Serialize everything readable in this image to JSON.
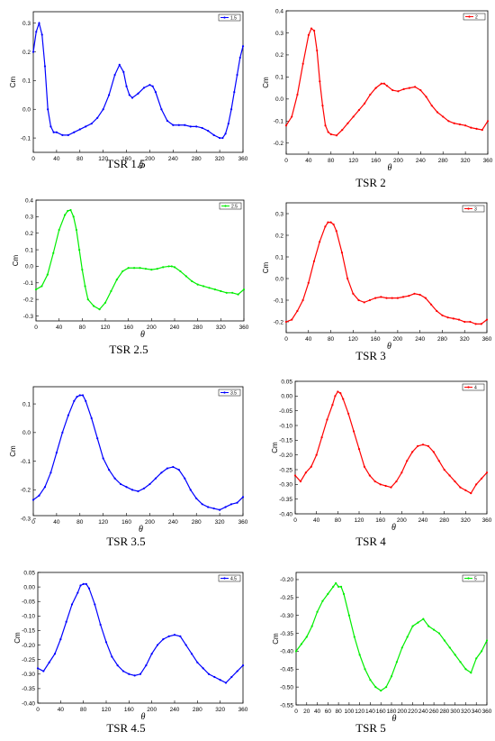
{
  "figure": {
    "charts": [
      {
        "caption": "TSR 1.5",
        "legend": "1.5",
        "color": "#0000ff"
      },
      {
        "caption": "TSR 2",
        "legend": "2",
        "color": "#ff0000"
      },
      {
        "caption": "TSR 2.5",
        "legend": "2.5",
        "color": "#00ee00"
      },
      {
        "caption": "TSR 3",
        "legend": "3",
        "color": "#ff0000"
      },
      {
        "caption": "TSR 3.5",
        "legend": "3.5",
        "color": "#0000ff"
      },
      {
        "caption": "TSR 4",
        "legend": "4",
        "color": "#ff0000"
      },
      {
        "caption": "TSR 4.5",
        "legend": "4.5",
        "color": "#0000ff"
      },
      {
        "caption": "TSR 5",
        "legend": "5",
        "color": "#00ee00"
      }
    ]
  },
  "chart_data": [
    {
      "type": "scatter",
      "title": "TSR 1.5",
      "xlabel": "θ",
      "ylabel": "Cm",
      "xlim": [
        0,
        360
      ],
      "ylim": [
        -0.15,
        0.34
      ],
      "xticks": [
        "0",
        "40",
        "80",
        "120",
        "160",
        "200",
        "240",
        "280",
        "320",
        "360"
      ],
      "yticks": [
        "-0.1",
        "0.0",
        "0.1",
        "0.2",
        "0.3"
      ],
      "ytick_values": [
        -0.1,
        0.0,
        0.1,
        0.2,
        0.3
      ],
      "legend_position": "top-right",
      "series": [
        {
          "name": "1.5",
          "color": "#0000ff",
          "x": [
            0,
            5,
            10,
            15,
            20,
            25,
            30,
            35,
            40,
            50,
            60,
            70,
            80,
            90,
            100,
            110,
            120,
            130,
            140,
            148,
            155,
            160,
            165,
            170,
            180,
            190,
            200,
            205,
            210,
            220,
            230,
            240,
            250,
            260,
            270,
            280,
            290,
            300,
            310,
            320,
            325,
            330,
            335,
            340,
            345,
            350,
            355,
            360
          ],
          "y": [
            0.2,
            0.27,
            0.3,
            0.26,
            0.15,
            0.0,
            -0.06,
            -0.08,
            -0.08,
            -0.09,
            -0.09,
            -0.08,
            -0.07,
            -0.06,
            -0.05,
            -0.03,
            0.0,
            0.05,
            0.12,
            0.155,
            0.13,
            0.08,
            0.05,
            0.04,
            0.055,
            0.075,
            0.085,
            0.08,
            0.06,
            0.0,
            -0.04,
            -0.055,
            -0.055,
            -0.055,
            -0.06,
            -0.06,
            -0.065,
            -0.075,
            -0.09,
            -0.1,
            -0.1,
            -0.085,
            -0.05,
            0.0,
            0.06,
            0.12,
            0.18,
            0.22
          ]
        }
      ]
    },
    {
      "type": "scatter",
      "title": "TSR 2",
      "xlabel": "θ",
      "ylabel": "Cm",
      "xlim": [
        0,
        360
      ],
      "ylim": [
        -0.25,
        0.4
      ],
      "xticks": [
        "0",
        "40",
        "80",
        "120",
        "160",
        "200",
        "240",
        "280",
        "320",
        "360"
      ],
      "yticks": [
        "-0.2",
        "-0.1",
        "0.0",
        "0.1",
        "0.2",
        "0.3",
        "0.4"
      ],
      "ytick_values": [
        -0.2,
        -0.1,
        0.0,
        0.1,
        0.2,
        0.3,
        0.4
      ],
      "legend_position": "top-right",
      "series": [
        {
          "name": "2",
          "color": "#ff0000",
          "x": [
            0,
            10,
            20,
            30,
            40,
            45,
            50,
            55,
            60,
            65,
            70,
            75,
            80,
            90,
            100,
            110,
            120,
            130,
            140,
            150,
            160,
            170,
            175,
            180,
            190,
            200,
            210,
            220,
            230,
            240,
            250,
            260,
            270,
            280,
            290,
            300,
            310,
            320,
            330,
            340,
            350,
            360
          ],
          "y": [
            -0.12,
            -0.08,
            0.02,
            0.16,
            0.29,
            0.32,
            0.31,
            0.22,
            0.08,
            -0.03,
            -0.12,
            -0.15,
            -0.16,
            -0.165,
            -0.14,
            -0.11,
            -0.08,
            -0.05,
            -0.02,
            0.02,
            0.05,
            0.07,
            0.07,
            0.06,
            0.04,
            0.035,
            0.045,
            0.05,
            0.055,
            0.04,
            0.01,
            -0.03,
            -0.06,
            -0.08,
            -0.1,
            -0.11,
            -0.115,
            -0.12,
            -0.13,
            -0.135,
            -0.14,
            -0.1
          ]
        }
      ]
    },
    {
      "type": "scatter",
      "title": "TSR 2.5",
      "xlabel": "θ",
      "ylabel": "Cm",
      "xlim": [
        0,
        360
      ],
      "ylim": [
        -0.33,
        0.4
      ],
      "xticks": [
        "0",
        "40",
        "80",
        "120",
        "160",
        "200",
        "240",
        "280",
        "320",
        "360"
      ],
      "yticks": [
        "-0.3",
        "-0.2",
        "-0.1",
        "0.0",
        "0.1",
        "0.2",
        "0.3",
        "0.4"
      ],
      "ytick_values": [
        -0.3,
        -0.2,
        -0.1,
        0.0,
        0.1,
        0.2,
        0.3,
        0.4
      ],
      "legend_position": "top-right",
      "series": [
        {
          "name": "2.5",
          "color": "#00ee00",
          "x": [
            0,
            10,
            20,
            30,
            40,
            50,
            55,
            60,
            65,
            70,
            75,
            80,
            85,
            90,
            100,
            110,
            120,
            130,
            140,
            150,
            160,
            170,
            180,
            190,
            200,
            210,
            220,
            230,
            235,
            240,
            250,
            260,
            270,
            280,
            290,
            300,
            310,
            320,
            330,
            340,
            350,
            360
          ],
          "y": [
            -0.14,
            -0.12,
            -0.05,
            0.08,
            0.22,
            0.31,
            0.335,
            0.34,
            0.3,
            0.22,
            0.1,
            -0.02,
            -0.12,
            -0.2,
            -0.24,
            -0.26,
            -0.22,
            -0.15,
            -0.08,
            -0.03,
            -0.01,
            -0.01,
            -0.01,
            -0.015,
            -0.02,
            -0.015,
            -0.005,
            0.0,
            0.0,
            -0.005,
            -0.03,
            -0.06,
            -0.09,
            -0.11,
            -0.12,
            -0.13,
            -0.14,
            -0.15,
            -0.16,
            -0.16,
            -0.17,
            -0.14
          ]
        }
      ]
    },
    {
      "type": "scatter",
      "title": "TSR 3",
      "xlabel": "θ",
      "ylabel": "Cm",
      "xlim": [
        0,
        360
      ],
      "ylim": [
        -0.25,
        0.35
      ],
      "xticks": [
        "0",
        "40",
        "80",
        "120",
        "160",
        "200",
        "240",
        "280",
        "320",
        "360"
      ],
      "yticks": [
        "-0.2",
        "-0.1",
        "0.0",
        "0.1",
        "0.2",
        "0.3"
      ],
      "ytick_values": [
        -0.2,
        -0.1,
        0.0,
        0.1,
        0.2,
        0.3
      ],
      "legend_position": "top-right",
      "series": [
        {
          "name": "3",
          "color": "#ff0000",
          "x": [
            0,
            10,
            20,
            30,
            40,
            50,
            60,
            70,
            75,
            80,
            85,
            90,
            100,
            110,
            120,
            130,
            140,
            150,
            160,
            170,
            180,
            190,
            200,
            210,
            220,
            230,
            240,
            250,
            260,
            270,
            280,
            290,
            300,
            310,
            320,
            330,
            340,
            350,
            360
          ],
          "y": [
            -0.2,
            -0.19,
            -0.15,
            -0.1,
            -0.02,
            0.08,
            0.17,
            0.24,
            0.26,
            0.26,
            0.25,
            0.22,
            0.12,
            0.0,
            -0.07,
            -0.1,
            -0.11,
            -0.1,
            -0.09,
            -0.085,
            -0.09,
            -0.09,
            -0.09,
            -0.085,
            -0.08,
            -0.07,
            -0.075,
            -0.09,
            -0.12,
            -0.15,
            -0.17,
            -0.18,
            -0.185,
            -0.19,
            -0.2,
            -0.2,
            -0.21,
            -0.21,
            -0.19
          ]
        }
      ]
    },
    {
      "type": "scatter",
      "title": "TSR 3.5",
      "xlabel": "θ",
      "ylabel": "Cm",
      "xlim": [
        0,
        360
      ],
      "ylim": [
        -0.29,
        0.16
      ],
      "xticks": [
        "0",
        "40",
        "80",
        "120",
        "160",
        "200",
        "240",
        "280",
        "320",
        "360"
      ],
      "yticks": [
        "-0.3",
        "-0.2",
        "-0.1",
        "0.0",
        "0.1"
      ],
      "ytick_values": [
        -0.3,
        -0.2,
        -0.1,
        0.0,
        0.1
      ],
      "legend_position": "top-right",
      "series": [
        {
          "name": "3.5",
          "color": "#0000ff",
          "x": [
            0,
            10,
            20,
            30,
            40,
            50,
            60,
            70,
            75,
            80,
            85,
            90,
            100,
            110,
            120,
            130,
            140,
            150,
            160,
            170,
            180,
            190,
            200,
            210,
            220,
            230,
            240,
            250,
            260,
            270,
            280,
            290,
            300,
            310,
            320,
            330,
            340,
            350,
            360
          ],
          "y": [
            -0.235,
            -0.22,
            -0.19,
            -0.14,
            -0.07,
            0.0,
            0.06,
            0.11,
            0.125,
            0.13,
            0.13,
            0.11,
            0.05,
            -0.02,
            -0.09,
            -0.13,
            -0.16,
            -0.18,
            -0.19,
            -0.2,
            -0.205,
            -0.195,
            -0.18,
            -0.16,
            -0.14,
            -0.125,
            -0.12,
            -0.13,
            -0.16,
            -0.2,
            -0.23,
            -0.25,
            -0.26,
            -0.265,
            -0.27,
            -0.26,
            -0.25,
            -0.245,
            -0.225
          ]
        }
      ]
    },
    {
      "type": "scatter",
      "title": "TSR 4",
      "xlabel": "θ",
      "ylabel": "Cm",
      "xlim": [
        0,
        360
      ],
      "ylim": [
        -0.4,
        0.05
      ],
      "xticks": [
        "0",
        "40",
        "80",
        "120",
        "160",
        "200",
        "240",
        "280",
        "320",
        "360"
      ],
      "yticks": [
        "-0.40",
        "-0.35",
        "-0.30",
        "-0.25",
        "-0.20",
        "-0.15",
        "-0.10",
        "-0.05",
        "0.00",
        "0.05"
      ],
      "ytick_values": [
        -0.4,
        -0.35,
        -0.3,
        -0.25,
        -0.2,
        -0.15,
        -0.1,
        -0.05,
        0.0,
        0.05
      ],
      "legend_position": "top-right",
      "series": [
        {
          "name": "4",
          "color": "#ff0000",
          "x": [
            0,
            10,
            20,
            30,
            40,
            50,
            60,
            70,
            75,
            80,
            85,
            90,
            100,
            110,
            120,
            130,
            140,
            150,
            160,
            170,
            180,
            190,
            200,
            210,
            220,
            230,
            240,
            250,
            260,
            270,
            280,
            290,
            300,
            310,
            320,
            330,
            340,
            350,
            360
          ],
          "y": [
            -0.27,
            -0.29,
            -0.26,
            -0.24,
            -0.2,
            -0.14,
            -0.08,
            -0.03,
            0.0,
            0.015,
            0.01,
            -0.01,
            -0.06,
            -0.12,
            -0.18,
            -0.24,
            -0.27,
            -0.29,
            -0.3,
            -0.305,
            -0.31,
            -0.29,
            -0.26,
            -0.22,
            -0.19,
            -0.17,
            -0.165,
            -0.17,
            -0.19,
            -0.22,
            -0.25,
            -0.27,
            -0.29,
            -0.31,
            -0.32,
            -0.33,
            -0.3,
            -0.28,
            -0.26
          ]
        }
      ]
    },
    {
      "type": "scatter",
      "title": "TSR 4.5",
      "xlabel": "θ",
      "ylabel": "Cm",
      "xlim": [
        0,
        360
      ],
      "ylim": [
        -0.4,
        0.05
      ],
      "xticks": [
        "0",
        "40",
        "80",
        "120",
        "160",
        "200",
        "240",
        "280",
        "320",
        "360"
      ],
      "yticks": [
        "-0.40",
        "-0.35",
        "-0.30",
        "-0.25",
        "-0.20",
        "-0.15",
        "-0.10",
        "-0.05",
        "0.00",
        "0.05"
      ],
      "ytick_values": [
        -0.4,
        -0.35,
        -0.3,
        -0.25,
        -0.2,
        -0.15,
        -0.1,
        -0.05,
        0.0,
        0.05
      ],
      "legend_position": "top-right",
      "series": [
        {
          "name": "4.5",
          "color": "#0000ff",
          "x": [
            0,
            10,
            20,
            30,
            40,
            50,
            60,
            70,
            75,
            80,
            85,
            90,
            100,
            110,
            120,
            130,
            140,
            150,
            160,
            170,
            180,
            190,
            200,
            210,
            220,
            230,
            240,
            250,
            260,
            270,
            280,
            290,
            300,
            310,
            320,
            330,
            340,
            350,
            360
          ],
          "y": [
            -0.28,
            -0.29,
            -0.26,
            -0.23,
            -0.18,
            -0.12,
            -0.06,
            -0.02,
            0.005,
            0.01,
            0.01,
            -0.005,
            -0.06,
            -0.13,
            -0.19,
            -0.24,
            -0.27,
            -0.29,
            -0.3,
            -0.305,
            -0.3,
            -0.27,
            -0.23,
            -0.2,
            -0.18,
            -0.17,
            -0.165,
            -0.17,
            -0.2,
            -0.23,
            -0.26,
            -0.28,
            -0.3,
            -0.31,
            -0.32,
            -0.33,
            -0.31,
            -0.29,
            -0.27
          ]
        }
      ]
    },
    {
      "type": "scatter",
      "title": "TSR 5",
      "xlabel": "θ",
      "ylabel": "Cm",
      "xlim": [
        0,
        360
      ],
      "ylim": [
        -0.55,
        -0.18
      ],
      "xticks": [
        "0",
        "20",
        "40",
        "60",
        "80",
        "100",
        "120",
        "140",
        "160",
        "180",
        "200",
        "220",
        "240",
        "260",
        "280",
        "300",
        "320",
        "340",
        "360"
      ],
      "yticks": [
        "-0.55",
        "-0.50",
        "-0.45",
        "-0.40",
        "-0.35",
        "-0.30",
        "-0.25",
        "-0.20"
      ],
      "ytick_values": [
        -0.55,
        -0.5,
        -0.45,
        -0.4,
        -0.35,
        -0.3,
        -0.25,
        -0.2
      ],
      "legend_position": "top-right",
      "series": [
        {
          "name": "5",
          "color": "#00ee00",
          "x": [
            0,
            10,
            20,
            30,
            40,
            50,
            60,
            70,
            75,
            80,
            85,
            90,
            100,
            110,
            120,
            130,
            140,
            150,
            160,
            170,
            180,
            190,
            200,
            210,
            220,
            230,
            240,
            250,
            260,
            270,
            280,
            290,
            300,
            310,
            320,
            330,
            340,
            350,
            360
          ],
          "y": [
            -0.4,
            -0.38,
            -0.36,
            -0.33,
            -0.29,
            -0.26,
            -0.24,
            -0.22,
            -0.21,
            -0.22,
            -0.22,
            -0.24,
            -0.3,
            -0.36,
            -0.41,
            -0.45,
            -0.48,
            -0.5,
            -0.51,
            -0.5,
            -0.47,
            -0.43,
            -0.39,
            -0.36,
            -0.33,
            -0.32,
            -0.31,
            -0.33,
            -0.34,
            -0.35,
            -0.37,
            -0.39,
            -0.41,
            -0.43,
            -0.45,
            -0.46,
            -0.42,
            -0.4,
            -0.37
          ]
        }
      ]
    }
  ]
}
